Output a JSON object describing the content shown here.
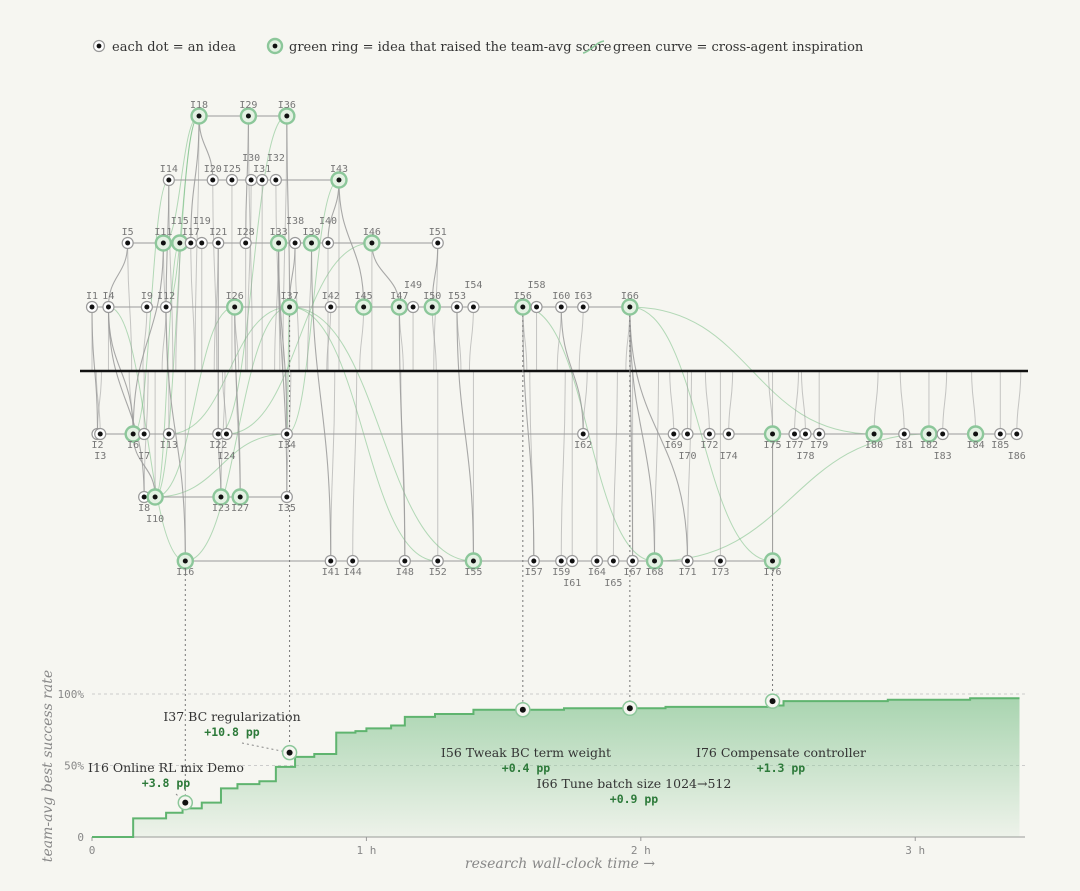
{
  "legend": {
    "dot": "each dot = an idea",
    "ring": "green ring = idea that raised the team-avg score",
    "curve": "green curve = cross-agent inspiration"
  },
  "colors": {
    "green": "#5fb46f",
    "ringFill": "#e4f1e3",
    "line": "#9a9a9a",
    "dot": "#111111",
    "area": "#8fc99a"
  },
  "chart_data": {
    "type": "area",
    "xlabel": "research wall-clock time →",
    "ylabel": "team-avg best success rate",
    "x_ticks": [
      "0",
      "1 h",
      "2 h",
      "3 h"
    ],
    "y_ticks": [
      "0",
      "50%",
      "100%"
    ],
    "xlim": [
      0,
      3.4
    ],
    "ylim": [
      0,
      100
    ],
    "step_series": [
      [
        0,
        0
      ],
      [
        0.15,
        13
      ],
      [
        0.27,
        17
      ],
      [
        0.33,
        20
      ],
      [
        0.4,
        24
      ],
      [
        0.47,
        34
      ],
      [
        0.53,
        37
      ],
      [
        0.61,
        39
      ],
      [
        0.67,
        49
      ],
      [
        0.74,
        56
      ],
      [
        0.81,
        58
      ],
      [
        0.89,
        73
      ],
      [
        0.96,
        74
      ],
      [
        1.0,
        76
      ],
      [
        1.09,
        78
      ],
      [
        1.14,
        84
      ],
      [
        1.25,
        86
      ],
      [
        1.39,
        89
      ],
      [
        1.57,
        89
      ],
      [
        1.72,
        90
      ],
      [
        1.97,
        90
      ],
      [
        2.09,
        91
      ],
      [
        2.48,
        92
      ],
      [
        2.52,
        95
      ],
      [
        2.9,
        96
      ],
      [
        3.2,
        97
      ],
      [
        3.38,
        97
      ]
    ],
    "annotations": [
      {
        "id": "I16",
        "name": "I16 Online RL mix Demo",
        "delta": "+3.8 pp",
        "x": 0.34,
        "y": 24
      },
      {
        "id": "I37",
        "name": "I37 BC regularization",
        "delta": "+10.8 pp",
        "x": 0.72,
        "y": 59
      },
      {
        "id": "I56",
        "name": "I56 Tweak BC term weight",
        "delta": "+0.4 pp",
        "x": 1.57,
        "y": 89
      },
      {
        "id": "I66",
        "name": "I66 Tune batch size 1024→512",
        "delta": "+0.9 pp",
        "x": 1.96,
        "y": 90
      },
      {
        "id": "I76",
        "name": "I76 Compensate controller",
        "delta": "+1.3 pp",
        "x": 2.48,
        "y": 95
      }
    ]
  },
  "ideas": [
    {
      "id": "I1",
      "lane": 0,
      "t": 0.0,
      "lp": "above"
    },
    {
      "id": "I2",
      "lane": -1,
      "t": 0.02,
      "lp": "below"
    },
    {
      "id": "I3",
      "lane": -1,
      "t": 0.03,
      "lp": "below2"
    },
    {
      "id": "I4",
      "lane": 0,
      "t": 0.06,
      "lp": "above"
    },
    {
      "id": "I5",
      "lane": 1,
      "t": 0.13,
      "lp": "above"
    },
    {
      "id": "I6",
      "lane": -1,
      "t": 0.15,
      "lp": "below",
      "ring": true
    },
    {
      "id": "I7",
      "lane": -1,
      "t": 0.19,
      "lp": "below2"
    },
    {
      "id": "I8",
      "lane": -2,
      "t": 0.19,
      "lp": "below"
    },
    {
      "id": "I9",
      "lane": 0,
      "t": 0.2,
      "lp": "above"
    },
    {
      "id": "I10",
      "lane": -2,
      "t": 0.23,
      "lp": "below2",
      "ring": true
    },
    {
      "id": "I11",
      "lane": 1,
      "t": 0.26,
      "lp": "above",
      "ring": true
    },
    {
      "id": "I12",
      "lane": 0,
      "t": 0.27,
      "lp": "above"
    },
    {
      "id": "I13",
      "lane": -1,
      "t": 0.28,
      "lp": "below"
    },
    {
      "id": "I14",
      "lane": 2,
      "t": 0.28,
      "lp": "above"
    },
    {
      "id": "I15",
      "lane": 1,
      "t": 0.32,
      "lp": "above2",
      "ring": true
    },
    {
      "id": "I16",
      "lane": -3,
      "t": 0.34,
      "lp": "below",
      "ring": true
    },
    {
      "id": "I17",
      "lane": 1,
      "t": 0.36,
      "lp": "above"
    },
    {
      "id": "I18",
      "lane": 3,
      "t": 0.39,
      "lp": "above",
      "ring": true
    },
    {
      "id": "I19",
      "lane": 1,
      "t": 0.4,
      "lp": "above2"
    },
    {
      "id": "I20",
      "lane": 2,
      "t": 0.44,
      "lp": "above"
    },
    {
      "id": "I21",
      "lane": 1,
      "t": 0.46,
      "lp": "above"
    },
    {
      "id": "I22",
      "lane": -1,
      "t": 0.46,
      "lp": "below"
    },
    {
      "id": "I23",
      "lane": -2,
      "t": 0.47,
      "lp": "below",
      "ring": true
    },
    {
      "id": "I24",
      "lane": -1,
      "t": 0.49,
      "lp": "below2"
    },
    {
      "id": "I25",
      "lane": 2,
      "t": 0.51,
      "lp": "above"
    },
    {
      "id": "I26",
      "lane": 0,
      "t": 0.52,
      "lp": "above",
      "ring": true
    },
    {
      "id": "I27",
      "lane": -2,
      "t": 0.54,
      "lp": "below",
      "ring": true
    },
    {
      "id": "I28",
      "lane": 1,
      "t": 0.56,
      "lp": "above"
    },
    {
      "id": "I29",
      "lane": 3,
      "t": 0.57,
      "lp": "above",
      "ring": true
    },
    {
      "id": "I30",
      "lane": 2,
      "t": 0.58,
      "lp": "above2"
    },
    {
      "id": "I31",
      "lane": 2,
      "t": 0.62,
      "lp": "above"
    },
    {
      "id": "I32",
      "lane": 2,
      "t": 0.67,
      "lp": "above2"
    },
    {
      "id": "I33",
      "lane": 1,
      "t": 0.68,
      "lp": "above",
      "ring": true
    },
    {
      "id": "I34",
      "lane": -1,
      "t": 0.71,
      "lp": "below"
    },
    {
      "id": "I35",
      "lane": -2,
      "t": 0.71,
      "lp": "below"
    },
    {
      "id": "I36",
      "lane": 3,
      "t": 0.71,
      "lp": "above",
      "ring": true
    },
    {
      "id": "I37",
      "lane": 0,
      "t": 0.72,
      "lp": "above",
      "ring": true
    },
    {
      "id": "I38",
      "lane": 1,
      "t": 0.74,
      "lp": "above2"
    },
    {
      "id": "I39",
      "lane": 1,
      "t": 0.8,
      "lp": "above",
      "ring": true
    },
    {
      "id": "I40",
      "lane": 1,
      "t": 0.86,
      "lp": "above2"
    },
    {
      "id": "I41",
      "lane": -3,
      "t": 0.87,
      "lp": "below"
    },
    {
      "id": "I42",
      "lane": 0,
      "t": 0.87,
      "lp": "above"
    },
    {
      "id": "I43",
      "lane": 2,
      "t": 0.9,
      "lp": "above",
      "ring": true
    },
    {
      "id": "I44",
      "lane": -3,
      "t": 0.95,
      "lp": "below"
    },
    {
      "id": "I45",
      "lane": 0,
      "t": 0.99,
      "lp": "above",
      "ring": true
    },
    {
      "id": "I46",
      "lane": 1,
      "t": 1.02,
      "lp": "above",
      "ring": true
    },
    {
      "id": "I47",
      "lane": 0,
      "t": 1.12,
      "lp": "above",
      "ring": true
    },
    {
      "id": "I48",
      "lane": -3,
      "t": 1.14,
      "lp": "below"
    },
    {
      "id": "I49",
      "lane": 0,
      "t": 1.17,
      "lp": "above2"
    },
    {
      "id": "I50",
      "lane": 0,
      "t": 1.24,
      "lp": "above",
      "ring": true
    },
    {
      "id": "I51",
      "lane": 1,
      "t": 1.26,
      "lp": "above"
    },
    {
      "id": "I52",
      "lane": -3,
      "t": 1.26,
      "lp": "below"
    },
    {
      "id": "I53",
      "lane": 0,
      "t": 1.33,
      "lp": "above"
    },
    {
      "id": "I54",
      "lane": 0,
      "t": 1.39,
      "lp": "above2"
    },
    {
      "id": "I55",
      "lane": -3,
      "t": 1.39,
      "lp": "below",
      "ring": true
    },
    {
      "id": "I56",
      "lane": 0,
      "t": 1.57,
      "lp": "above",
      "ring": true
    },
    {
      "id": "I57",
      "lane": -3,
      "t": 1.61,
      "lp": "below"
    },
    {
      "id": "I58",
      "lane": 0,
      "t": 1.62,
      "lp": "above2"
    },
    {
      "id": "I59",
      "lane": -3,
      "t": 1.71,
      "lp": "below"
    },
    {
      "id": "I60",
      "lane": 0,
      "t": 1.71,
      "lp": "above"
    },
    {
      "id": "I61",
      "lane": -3,
      "t": 1.75,
      "lp": "below2"
    },
    {
      "id": "I62",
      "lane": -1,
      "t": 1.79,
      "lp": "below"
    },
    {
      "id": "I63",
      "lane": 0,
      "t": 1.79,
      "lp": "above"
    },
    {
      "id": "I64",
      "lane": -3,
      "t": 1.84,
      "lp": "below"
    },
    {
      "id": "I65",
      "lane": -3,
      "t": 1.9,
      "lp": "below2"
    },
    {
      "id": "I66",
      "lane": 0,
      "t": 1.96,
      "lp": "above",
      "ring": true
    },
    {
      "id": "I67",
      "lane": -3,
      "t": 1.97,
      "lp": "below"
    },
    {
      "id": "I68",
      "lane": -3,
      "t": 2.05,
      "lp": "below",
      "ring": true
    },
    {
      "id": "I69",
      "lane": -1,
      "t": 2.12,
      "lp": "below"
    },
    {
      "id": "I70",
      "lane": -1,
      "t": 2.17,
      "lp": "below2"
    },
    {
      "id": "I71",
      "lane": -3,
      "t": 2.17,
      "lp": "below"
    },
    {
      "id": "I72",
      "lane": -1,
      "t": 2.25,
      "lp": "below"
    },
    {
      "id": "I73",
      "lane": -3,
      "t": 2.29,
      "lp": "below"
    },
    {
      "id": "I74",
      "lane": -1,
      "t": 2.32,
      "lp": "below2"
    },
    {
      "id": "I75",
      "lane": -1,
      "t": 2.48,
      "lp": "below",
      "ring": true
    },
    {
      "id": "I76",
      "lane": -3,
      "t": 2.48,
      "lp": "below",
      "ring": true
    },
    {
      "id": "I77",
      "lane": -1,
      "t": 2.56,
      "lp": "below"
    },
    {
      "id": "I78",
      "lane": -1,
      "t": 2.6,
      "lp": "below2"
    },
    {
      "id": "I79",
      "lane": -1,
      "t": 2.65,
      "lp": "below"
    },
    {
      "id": "I80",
      "lane": -1,
      "t": 2.85,
      "lp": "below",
      "ring": true
    },
    {
      "id": "I81",
      "lane": -1,
      "t": 2.96,
      "lp": "below"
    },
    {
      "id": "I82",
      "lane": -1,
      "t": 3.05,
      "lp": "below",
      "ring": true
    },
    {
      "id": "I83",
      "lane": -1,
      "t": 3.1,
      "lp": "below2"
    },
    {
      "id": "I84",
      "lane": -1,
      "t": 3.22,
      "lp": "below",
      "ring": true
    },
    {
      "id": "I85",
      "lane": -1,
      "t": 3.31,
      "lp": "below"
    },
    {
      "id": "I86",
      "lane": -1,
      "t": 3.37,
      "lp": "below2"
    }
  ],
  "inspirations": [
    [
      "I4",
      "I16"
    ],
    [
      "I6",
      "I14"
    ],
    [
      "I10",
      "I18"
    ],
    [
      "I10",
      "I15"
    ],
    [
      "I11",
      "I18"
    ],
    [
      "I12",
      "I18"
    ],
    [
      "I10",
      "I26"
    ],
    [
      "I16",
      "I37"
    ],
    [
      "I22",
      "I36"
    ],
    [
      "I37",
      "I34"
    ],
    [
      "I34",
      "I43"
    ],
    [
      "I26",
      "I37"
    ],
    [
      "I37",
      "I55"
    ],
    [
      "I45",
      "I56"
    ],
    [
      "I47",
      "I66"
    ],
    [
      "I56",
      "I68"
    ],
    [
      "I66",
      "I76"
    ],
    [
      "I66",
      "I80"
    ],
    [
      "I37",
      "I52"
    ],
    [
      "I24",
      "I46"
    ],
    [
      "I10",
      "I34"
    ],
    [
      "I37",
      "I13"
    ],
    [
      "I75",
      "I84"
    ],
    [
      "I68",
      "I82"
    ]
  ],
  "edges": [
    [
      "I1",
      "I2"
    ],
    [
      "I1",
      "I4"
    ],
    [
      "I4",
      "I6"
    ],
    [
      "I4",
      "I8"
    ],
    [
      "I4",
      "I5"
    ],
    [
      "I6",
      "I10"
    ],
    [
      "I6",
      "I11"
    ],
    [
      "I9",
      "I12"
    ],
    [
      "I12",
      "I14"
    ],
    [
      "I12",
      "I16"
    ],
    [
      "I11",
      "I15"
    ],
    [
      "I15",
      "I17"
    ],
    [
      "I17",
      "I18"
    ],
    [
      "I19",
      "I21"
    ],
    [
      "I18",
      "I20"
    ],
    [
      "I21",
      "I22"
    ],
    [
      "I22",
      "I23"
    ],
    [
      "I26",
      "I27"
    ],
    [
      "I28",
      "I29"
    ],
    [
      "I29",
      "I36"
    ],
    [
      "I33",
      "I35"
    ],
    [
      "I33",
      "I34"
    ],
    [
      "I36",
      "I37"
    ],
    [
      "I37",
      "I38"
    ],
    [
      "I39",
      "I41"
    ],
    [
      "I40",
      "I43"
    ],
    [
      "I43",
      "I45"
    ],
    [
      "I46",
      "I47"
    ],
    [
      "I47",
      "I48"
    ],
    [
      "I50",
      "I51"
    ],
    [
      "I53",
      "I55"
    ],
    [
      "I56",
      "I57"
    ],
    [
      "I60",
      "I62"
    ],
    [
      "I66",
      "I67"
    ],
    [
      "I66",
      "I68"
    ],
    [
      "I66",
      "I71"
    ],
    [
      "I75",
      "I76"
    ],
    [
      "I77",
      "I79"
    ],
    [
      "I80",
      "I81"
    ],
    [
      "I82",
      "I83"
    ],
    [
      "I84",
      "I85"
    ]
  ]
}
